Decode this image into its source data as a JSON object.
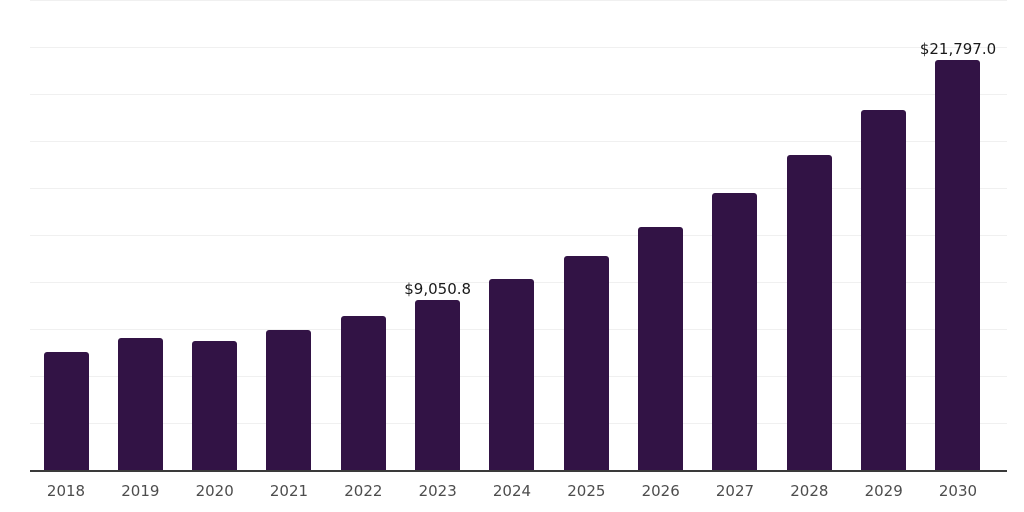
{
  "chart_data": {
    "type": "bar",
    "title": "",
    "xlabel": "",
    "ylabel": "",
    "categories": [
      "2018",
      "2019",
      "2020",
      "2021",
      "2022",
      "2023",
      "2024",
      "2025",
      "2026",
      "2027",
      "2028",
      "2029",
      "2030"
    ],
    "values": [
      6300,
      7000,
      6850,
      7450,
      8200,
      9050.8,
      10150,
      11400,
      12950,
      14750,
      16750,
      19150,
      21797.0
    ],
    "value_prefix": "$",
    "annotations": [
      {
        "category": "2023",
        "label": "$9,050.8"
      },
      {
        "category": "2030",
        "label": "$21,797.0"
      }
    ],
    "ylim": [
      0,
      25000
    ],
    "grid_interval": 2500,
    "grid": true,
    "legend": false,
    "colors": {
      "bar": "#321345",
      "gridline": "#f0f0f0",
      "axis_line": "#3a3a3a",
      "tick_label": "#4d4d4d",
      "data_label": "#1a1a1a",
      "background": "#ffffff"
    }
  }
}
